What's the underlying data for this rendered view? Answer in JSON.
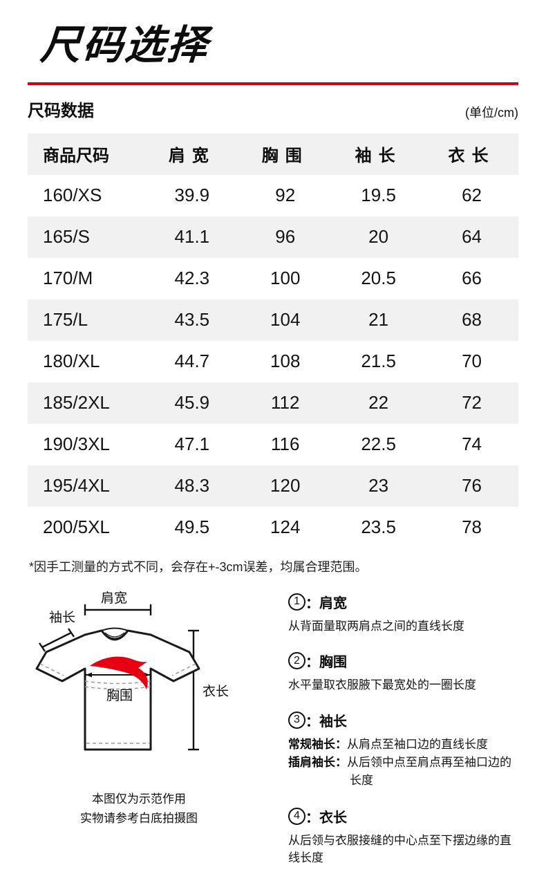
{
  "page": {
    "title": "尺码选择",
    "divider_color": "#cf000f"
  },
  "size_section": {
    "heading": "尺码数据",
    "unit_label": "(单位/cm)",
    "table": {
      "columns": [
        "商品尺码",
        "肩宽",
        "胸围",
        "袖长",
        "衣长"
      ],
      "rows": [
        [
          "160/XS",
          "39.9",
          "92",
          "19.5",
          "62"
        ],
        [
          "165/S",
          "41.1",
          "96",
          "20",
          "64"
        ],
        [
          "170/M",
          "42.3",
          "100",
          "20.5",
          "66"
        ],
        [
          "175/L",
          "43.5",
          "104",
          "21",
          "68"
        ],
        [
          "180/XL",
          "44.7",
          "108",
          "21.5",
          "70"
        ],
        [
          "185/2XL",
          "45.9",
          "112",
          "22",
          "72"
        ],
        [
          "190/3XL",
          "47.1",
          "116",
          "22.5",
          "74"
        ],
        [
          "195/4XL",
          "48.3",
          "120",
          "23",
          "76"
        ],
        [
          "200/5XL",
          "49.5",
          "124",
          "23.5",
          "78"
        ]
      ]
    },
    "note": "*因手工测量的方式不同，会存在+-3cm误差，均属合理范围。"
  },
  "diagram": {
    "labels": {
      "shoulder": "肩宽",
      "sleeve": "袖长",
      "chest": "胸围",
      "length": "衣长"
    },
    "logo_color": "#e60012",
    "caption_line1": "本图仅为示范作用",
    "caption_line2": "实物请参考白底拍摄图"
  },
  "measure_guide": {
    "separator": "：",
    "items": [
      {
        "num": "1",
        "label": "肩宽",
        "desc": "从背面量取两肩点之间的直线长度"
      },
      {
        "num": "2",
        "label": "胸围",
        "desc": "水平量取衣服腋下最宽处的一圈长度"
      },
      {
        "num": "3",
        "label": "袖长",
        "sub": [
          {
            "lead": "常规袖长：",
            "text": "从肩点至袖口边的直线长度"
          },
          {
            "lead": "插肩袖长：",
            "text": "从后领中点至肩点再至袖口边的长度"
          }
        ]
      },
      {
        "num": "4",
        "label": "衣长",
        "desc": "从后领与衣服接缝的中心点至下摆边缘的直线长度"
      }
    ]
  }
}
